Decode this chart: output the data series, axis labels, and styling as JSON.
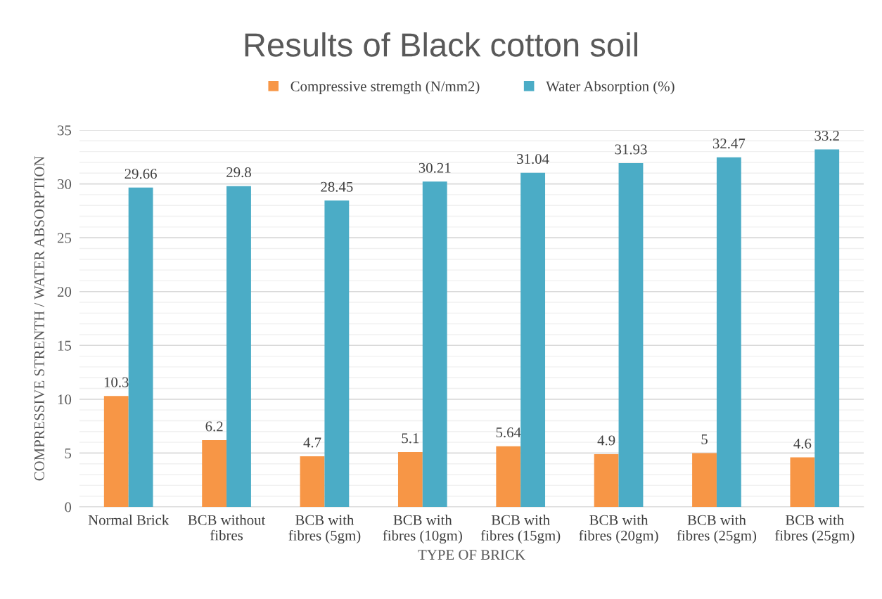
{
  "chart_data": {
    "type": "bar",
    "title": "Results of Black cotton soil",
    "xlabel": "TYPE OF BRICK",
    "ylabel": "COMPRESSIVE STRENTH / WATER ABSORPTION",
    "categories": [
      "Normal Brick",
      "BCB without\nfibres",
      "BCB with\nfibres (5gm)",
      "BCB with\nfibres (10gm)",
      "BCB with\nfibres (15gm)",
      "BCB with\nfibres (20gm)",
      "BCB with\nfibres (25gm)",
      "BCB with\nfibres (25gm)"
    ],
    "series": [
      {
        "name": "Compressive stremgth (N/mm2)",
        "color": "#f79646",
        "values": [
          10.3,
          6.2,
          4.7,
          5.1,
          5.64,
          4.9,
          5,
          4.6
        ]
      },
      {
        "name": "Water Absorption (%)",
        "color": "#4bacc6",
        "values": [
          29.66,
          29.8,
          28.45,
          30.21,
          31.04,
          31.93,
          32.47,
          33.2
        ]
      }
    ],
    "ylim": [
      0,
      35
    ],
    "yticks": [
      0,
      5,
      10,
      15,
      20,
      25,
      30,
      35
    ],
    "grid": "y",
    "legend": "top",
    "data_labels": true
  }
}
